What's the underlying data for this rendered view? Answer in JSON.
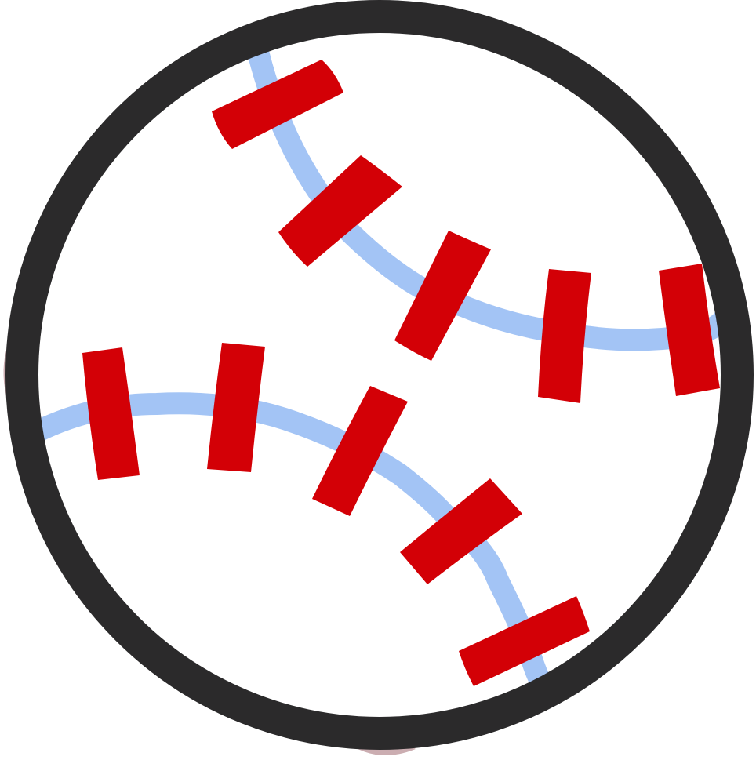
{
  "image": {
    "subject": "baseball-icon",
    "colors": {
      "background": "#ffffff",
      "ball_fill": "#ffffff",
      "outline": "#2b2a2b",
      "seam_thread": "#a3c4f5",
      "stitch": "#d30006",
      "shadow": "#b58a90"
    }
  }
}
